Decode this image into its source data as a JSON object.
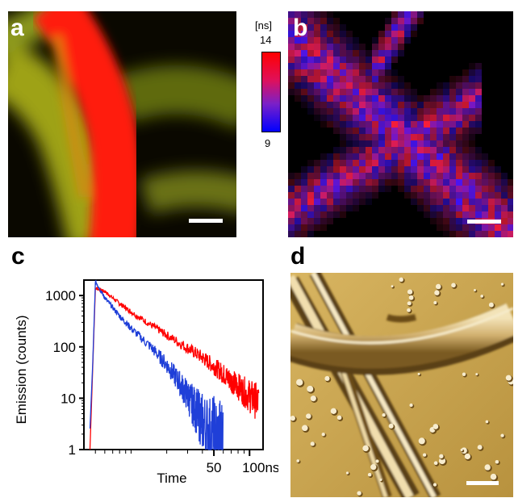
{
  "panels": {
    "a": {
      "label": "a",
      "label_color": "#ffffff"
    },
    "b": {
      "label": "b",
      "label_color": "#ffffff"
    },
    "c": {
      "label": "c",
      "label_color": "#000000"
    },
    "d": {
      "label": "d",
      "label_color": "#000000"
    }
  },
  "colorbar": {
    "unit": "[ns]",
    "max_label": "14",
    "min_label": "9",
    "max_color": "#ff0000",
    "min_color": "#0000ff"
  },
  "chart_data": {
    "type": "line",
    "xlabel": "Time",
    "ylabel": "Emission (counts)",
    "y_scale": "log",
    "x_scale": "log",
    "ylim": [
      1,
      2000
    ],
    "yticks": [
      1,
      10,
      100,
      1000
    ],
    "ytick_labels": [
      "1",
      "10",
      "100",
      "1000"
    ],
    "xticks": [
      50,
      100
    ],
    "xtick_labels": [
      "50",
      "100ns"
    ],
    "xlim": [
      4,
      130
    ],
    "series": [
      {
        "color": "#ff0000",
        "x": [
          4.5,
          5,
          6,
          8,
          10,
          15,
          20,
          30,
          40,
          50,
          60,
          70,
          80,
          100,
          120
        ],
        "y": [
          1,
          1400,
          1200,
          700,
          480,
          260,
          170,
          95,
          62,
          42,
          30,
          22,
          17,
          11,
          8
        ]
      },
      {
        "color": "#1f3fd8",
        "x": [
          4.5,
          5,
          6,
          8,
          10,
          15,
          20,
          25,
          30,
          35,
          40,
          50,
          60
        ],
        "y": [
          1,
          1900,
          900,
          400,
          230,
          95,
          45,
          22,
          11,
          6,
          3.5,
          1.5,
          1
        ]
      }
    ]
  },
  "colors": {
    "afm_base": "#c9a64f",
    "red_fiber": "#ff1a0a",
    "green_fiber": "#b8c21a"
  }
}
